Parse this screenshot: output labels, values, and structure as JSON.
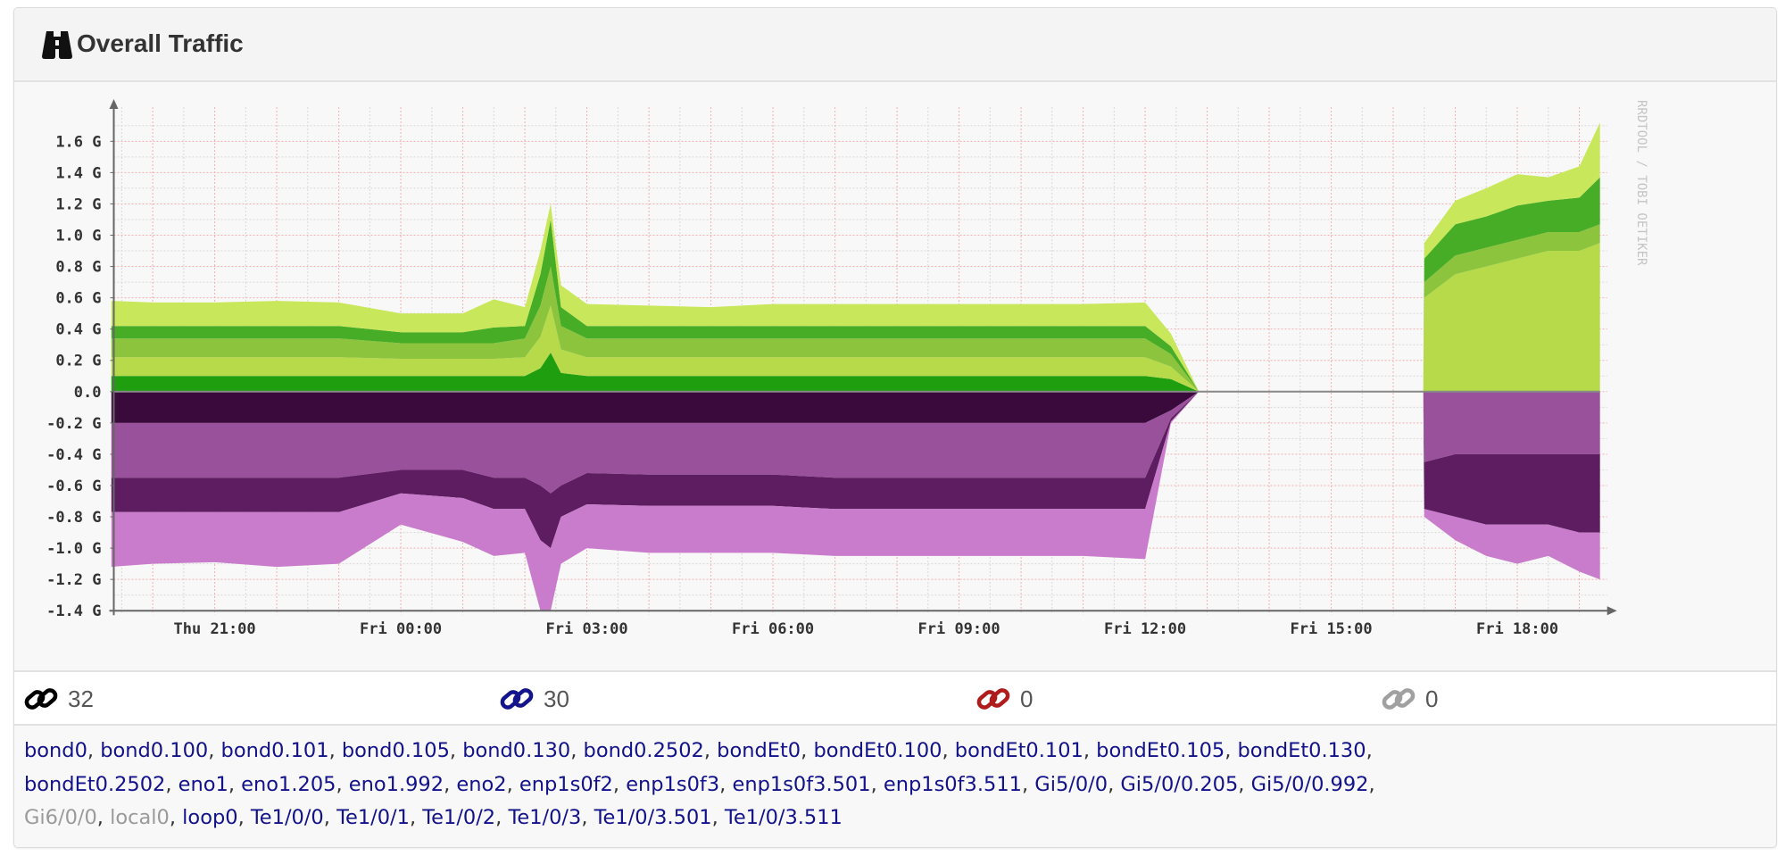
{
  "panel": {
    "title": "Overall Traffic",
    "icon": "binoculars-icon"
  },
  "stats": [
    {
      "icon": "link-icon",
      "color": "#000000",
      "value": "32"
    },
    {
      "icon": "link-icon",
      "color": "#14148c",
      "value": "30"
    },
    {
      "icon": "link-icon",
      "color": "#b01c1c",
      "value": "0"
    },
    {
      "icon": "link-icon",
      "color": "#a0a0a0",
      "value": "0"
    }
  ],
  "interfaces": [
    [
      {
        "name": "bond0",
        "up": true
      },
      {
        "name": "bond0.100",
        "up": true
      },
      {
        "name": "bond0.101",
        "up": true
      },
      {
        "name": "bond0.105",
        "up": true
      },
      {
        "name": "bond0.130",
        "up": true
      },
      {
        "name": "bond0.2502",
        "up": true
      },
      {
        "name": "bondEt0",
        "up": true
      },
      {
        "name": "bondEt0.100",
        "up": true
      },
      {
        "name": "bondEt0.101",
        "up": true
      },
      {
        "name": "bondEt0.105",
        "up": true
      },
      {
        "name": "bondEt0.130",
        "up": true
      }
    ],
    [
      {
        "name": "bondEt0.2502",
        "up": true
      },
      {
        "name": "eno1",
        "up": true
      },
      {
        "name": "eno1.205",
        "up": true
      },
      {
        "name": "eno1.992",
        "up": true
      },
      {
        "name": "eno2",
        "up": true
      },
      {
        "name": "enp1s0f2",
        "up": true
      },
      {
        "name": "enp1s0f3",
        "up": true
      },
      {
        "name": "enp1s0f3.501",
        "up": true
      },
      {
        "name": "enp1s0f3.511",
        "up": true
      },
      {
        "name": "Gi5/0/0",
        "up": true
      },
      {
        "name": "Gi5/0/0.205",
        "up": true
      },
      {
        "name": "Gi5/0/0.992",
        "up": true
      }
    ],
    [
      {
        "name": "Gi6/0/0",
        "up": false
      },
      {
        "name": "local0",
        "up": false
      },
      {
        "name": "loop0",
        "up": true
      },
      {
        "name": "Te1/0/0",
        "up": true
      },
      {
        "name": "Te1/0/1",
        "up": true
      },
      {
        "name": "Te1/0/2",
        "up": true
      },
      {
        "name": "Te1/0/3",
        "up": true
      },
      {
        "name": "Te1/0/3.501",
        "up": true
      },
      {
        "name": "Te1/0/3.511",
        "up": true
      }
    ]
  ],
  "chart_data": {
    "type": "area",
    "stacked": true,
    "watermark": "RRDTOOL / TOBI OETIKER",
    "ylim": [
      -1.4,
      1.7
    ],
    "y_ticks": [
      {
        "value": 1.6,
        "label": "1.6 G"
      },
      {
        "value": 1.4,
        "label": "1.4 G"
      },
      {
        "value": 1.2,
        "label": "1.2 G"
      },
      {
        "value": 1.0,
        "label": "1.0 G"
      },
      {
        "value": 0.8,
        "label": "0.8 G"
      },
      {
        "value": 0.6,
        "label": "0.6 G"
      },
      {
        "value": 0.4,
        "label": "0.4 G"
      },
      {
        "value": 0.2,
        "label": "0.2 G"
      },
      {
        "value": 0.0,
        "label": "0.0"
      },
      {
        "value": -0.2,
        "label": "-0.2 G"
      },
      {
        "value": -0.4,
        "label": "-0.4 G"
      },
      {
        "value": -0.6,
        "label": "-0.6 G"
      },
      {
        "value": -0.8,
        "label": "-0.8 G"
      },
      {
        "value": -1.0,
        "label": "-1.0 G"
      },
      {
        "value": -1.2,
        "label": "-1.2 G"
      },
      {
        "value": -1.4,
        "label": "-1.4 G"
      }
    ],
    "x_ticks": [
      "Thu 21:00",
      "Fri 00:00",
      "Fri 03:00",
      "Fri 06:00",
      "Fri 09:00",
      "Fri 12:00",
      "Fri 15:00",
      "Fri 18:00"
    ],
    "xlim": [
      "Thu 19:20",
      "Fri 19:20"
    ],
    "grid": true,
    "x": [
      "Thu 19:20",
      "Thu 20:00",
      "Thu 21:00",
      "Thu 22:00",
      "Thu 23:00",
      "Fri 00:00",
      "Fri 01:00",
      "Fri 01:30",
      "Fri 02:00",
      "Fri 02:15",
      "Fri 02:25",
      "Fri 02:35",
      "Fri 03:00",
      "Fri 04:00",
      "Fri 05:00",
      "Fri 06:00",
      "Fri 07:00",
      "Fri 08:00",
      "Fri 09:00",
      "Fri 10:00",
      "Fri 11:00",
      "Fri 12:00",
      "Fri 12:25",
      "Fri 12:52",
      "Fri 16:29",
      "Fri 16:30",
      "Fri 17:00",
      "Fri 17:30",
      "Fri 18:00",
      "Fri 18:30",
      "Fri 19:00",
      "Fri 19:20"
    ],
    "series_out": [
      {
        "color": "#1f9e0f",
        "values": [
          0.1,
          0.1,
          0.1,
          0.1,
          0.1,
          0.1,
          0.1,
          0.1,
          0.1,
          0.15,
          0.25,
          0.12,
          0.1,
          0.1,
          0.1,
          0.1,
          0.1,
          0.1,
          0.1,
          0.1,
          0.1,
          0.1,
          0.08,
          0,
          0,
          0,
          0,
          0,
          0,
          0,
          0,
          0
        ]
      },
      {
        "color": "#b6da4a",
        "values": [
          0.12,
          0.12,
          0.12,
          0.12,
          0.12,
          0.11,
          0.11,
          0.11,
          0.12,
          0.2,
          0.3,
          0.15,
          0.12,
          0.12,
          0.12,
          0.12,
          0.12,
          0.12,
          0.12,
          0.12,
          0.12,
          0.12,
          0.08,
          0,
          0,
          0.6,
          0.75,
          0.8,
          0.85,
          0.9,
          0.9,
          0.95
        ]
      },
      {
        "color": "#8cc43e",
        "values": [
          0.12,
          0.12,
          0.12,
          0.12,
          0.12,
          0.1,
          0.1,
          0.1,
          0.12,
          0.2,
          0.25,
          0.15,
          0.12,
          0.12,
          0.12,
          0.12,
          0.12,
          0.12,
          0.12,
          0.12,
          0.12,
          0.12,
          0.08,
          0,
          0,
          0.1,
          0.12,
          0.12,
          0.12,
          0.12,
          0.12,
          0.12
        ]
      },
      {
        "color": "#48ad26",
        "values": [
          0.08,
          0.08,
          0.08,
          0.08,
          0.08,
          0.07,
          0.07,
          0.1,
          0.08,
          0.2,
          0.3,
          0.12,
          0.08,
          0.08,
          0.08,
          0.08,
          0.08,
          0.08,
          0.08,
          0.08,
          0.08,
          0.08,
          0.05,
          0,
          0,
          0.15,
          0.2,
          0.2,
          0.22,
          0.2,
          0.22,
          0.3
        ]
      },
      {
        "color": "#c9e75a",
        "values": [
          0.16,
          0.15,
          0.15,
          0.16,
          0.15,
          0.12,
          0.12,
          0.18,
          0.12,
          0.15,
          0.1,
          0.14,
          0.14,
          0.13,
          0.12,
          0.14,
          0.14,
          0.14,
          0.14,
          0.14,
          0.14,
          0.15,
          0.08,
          0,
          0,
          0.1,
          0.15,
          0.18,
          0.2,
          0.15,
          0.2,
          0.35
        ]
      }
    ],
    "series_in": [
      {
        "color": "#3b0a3c",
        "values": [
          0.2,
          0.2,
          0.2,
          0.2,
          0.2,
          0.2,
          0.2,
          0.2,
          0.2,
          0.2,
          0.2,
          0.2,
          0.2,
          0.2,
          0.2,
          0.2,
          0.2,
          0.2,
          0.2,
          0.2,
          0.2,
          0.2,
          0.12,
          0,
          0,
          0,
          0,
          0,
          0,
          0,
          0,
          0
        ]
      },
      {
        "color": "#9a519c",
        "values": [
          0.35,
          0.35,
          0.35,
          0.35,
          0.35,
          0.3,
          0.3,
          0.35,
          0.35,
          0.4,
          0.45,
          0.4,
          0.32,
          0.33,
          0.33,
          0.33,
          0.35,
          0.35,
          0.35,
          0.35,
          0.35,
          0.35,
          0.05,
          0,
          0,
          0.45,
          0.4,
          0.4,
          0.4,
          0.4,
          0.4,
          0.4
        ]
      },
      {
        "color": "#5e1d60",
        "values": [
          0.22,
          0.22,
          0.22,
          0.22,
          0.22,
          0.15,
          0.18,
          0.2,
          0.2,
          0.35,
          0.35,
          0.2,
          0.2,
          0.2,
          0.2,
          0.2,
          0.2,
          0.2,
          0.2,
          0.2,
          0.2,
          0.2,
          0.02,
          0,
          0,
          0.3,
          0.4,
          0.45,
          0.45,
          0.45,
          0.5,
          0.5
        ]
      },
      {
        "color": "#c97ccb",
        "values": [
          0.35,
          0.33,
          0.32,
          0.35,
          0.33,
          0.2,
          0.28,
          0.3,
          0.28,
          0.45,
          0.5,
          0.3,
          0.28,
          0.3,
          0.3,
          0.3,
          0.3,
          0.3,
          0.3,
          0.3,
          0.3,
          0.32,
          0.01,
          0,
          0,
          0.05,
          0.15,
          0.2,
          0.25,
          0.2,
          0.25,
          0.3
        ]
      }
    ]
  }
}
